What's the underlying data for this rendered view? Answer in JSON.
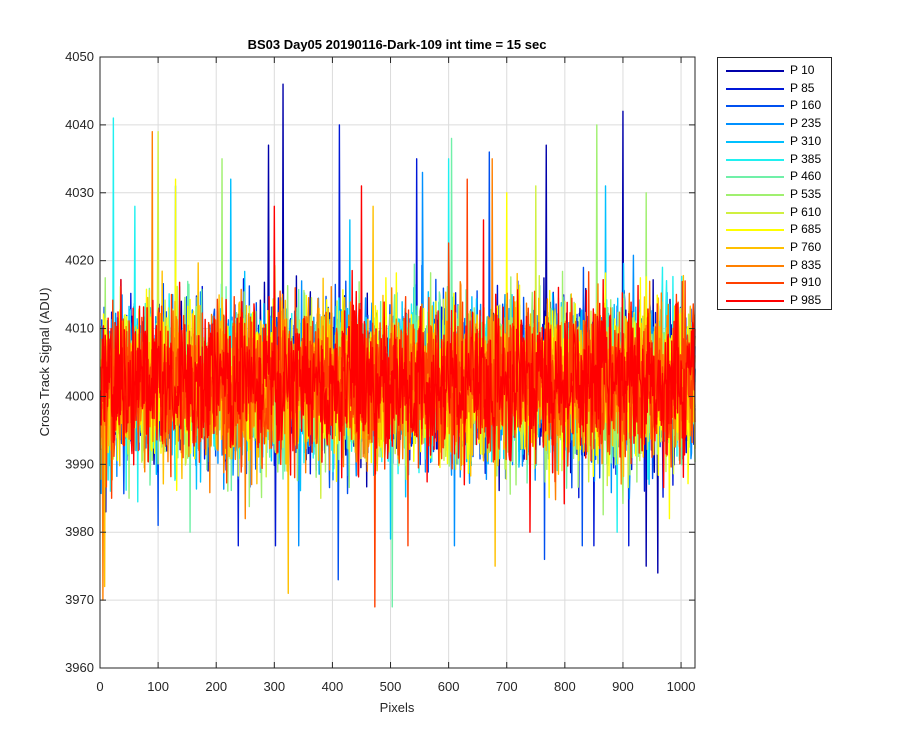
{
  "chart_data": {
    "type": "line",
    "title": "BS03 Day05 20190116-Dark-109 int time = 15 sec",
    "xlabel": "Pixels",
    "ylabel": "Cross Track Signal (ADU)",
    "xlim": [
      0,
      1024
    ],
    "ylim": [
      3960,
      4050
    ],
    "xticks": [
      "0",
      "100",
      "200",
      "300",
      "400",
      "500",
      "600",
      "700",
      "800",
      "900",
      "1000"
    ],
    "yticks": [
      "3960",
      "3970",
      "3980",
      "3990",
      "4000",
      "4010",
      "4020",
      "4030",
      "4040",
      "4050"
    ],
    "grid": true,
    "legend_position": "outside-right-top",
    "x_range": [
      1,
      1024
    ],
    "center_value": 4002,
    "spread": 9,
    "series": [
      {
        "name": "P 10",
        "color": "#0000aa",
        "peaks": [
          [
            315,
            4046
          ],
          [
            900,
            4042
          ],
          [
            768,
            4037
          ],
          [
            290,
            4037
          ],
          [
            10,
            3983
          ],
          [
            960,
            3974
          ],
          [
            940,
            3975
          ]
        ]
      },
      {
        "name": "P 85",
        "color": "#0018d8",
        "peaks": [
          [
            412,
            4040
          ],
          [
            238,
            3978
          ],
          [
            302,
            3978
          ],
          [
            910,
            3978
          ],
          [
            545,
            4035
          ],
          [
            850,
            3978
          ]
        ]
      },
      {
        "name": "P 160",
        "color": "#0050f0",
        "peaks": [
          [
            410,
            3973
          ],
          [
            765,
            3976
          ],
          [
            670,
            4036
          ],
          [
            830,
            3978
          ],
          [
            100,
            3981
          ]
        ]
      },
      {
        "name": "P 235",
        "color": "#0090ff",
        "peaks": [
          [
            342,
            3978
          ],
          [
            130,
            4031
          ],
          [
            610,
            3978
          ],
          [
            555,
            4033
          ]
        ]
      },
      {
        "name": "P 310",
        "color": "#00c0ff",
        "peaks": [
          [
            225,
            4032
          ],
          [
            430,
            4026
          ],
          [
            870,
            4031
          ],
          [
            500,
            3979
          ]
        ]
      },
      {
        "name": "P 385",
        "color": "#20f0f0",
        "peaks": [
          [
            23,
            4041
          ],
          [
            600,
            4035
          ],
          [
            60,
            4028
          ],
          [
            890,
            3980
          ]
        ]
      },
      {
        "name": "P 460",
        "color": "#70f0a8",
        "peaks": [
          [
            503,
            3969
          ],
          [
            605,
            4038
          ],
          [
            155,
            3980
          ]
        ]
      },
      {
        "name": "P 535",
        "color": "#a0f070",
        "peaks": [
          [
            855,
            4040
          ],
          [
            210,
            4035
          ],
          [
            940,
            4030
          ],
          [
            50,
            3985
          ]
        ]
      },
      {
        "name": "P 610",
        "color": "#d0f040",
        "peaks": [
          [
            100,
            4039
          ],
          [
            750,
            4031
          ],
          [
            380,
            3985
          ]
        ]
      },
      {
        "name": "P 685",
        "color": "#ffff00",
        "peaks": [
          [
            700,
            4030
          ],
          [
            130,
            4032
          ],
          [
            980,
            3982
          ]
        ]
      },
      {
        "name": "P 760",
        "color": "#ffc000",
        "peaks": [
          [
            324,
            3971
          ],
          [
            680,
            3975
          ],
          [
            470,
            4028
          ],
          [
            8,
            3972
          ]
        ]
      },
      {
        "name": "P 835",
        "color": "#ff8000",
        "peaks": [
          [
            90,
            4039
          ],
          [
            675,
            4035
          ],
          [
            5,
            3970
          ],
          [
            250,
            3982
          ]
        ]
      },
      {
        "name": "P 910",
        "color": "#ff4000",
        "peaks": [
          [
            473,
            3969
          ],
          [
            632,
            4032
          ],
          [
            530,
            3978
          ],
          [
            20,
            3985
          ]
        ]
      },
      {
        "name": "P 985",
        "color": "#ff0000",
        "peaks": [
          [
            450,
            4031
          ],
          [
            660,
            4026
          ],
          [
            740,
            3980
          ],
          [
            300,
            4028
          ]
        ]
      }
    ]
  }
}
